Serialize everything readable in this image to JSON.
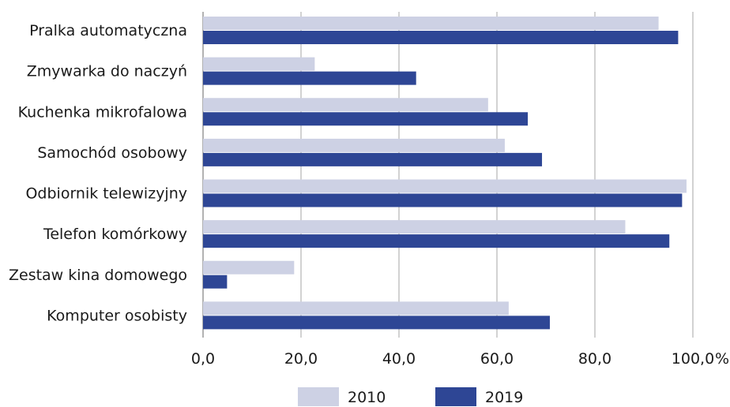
{
  "chart_data": {
    "type": "bar",
    "orientation": "horizontal",
    "categories": [
      "Pralka automatyczna",
      "Zmywarka do naczyń",
      "Kuchenka mikrofalowa",
      "Samochód osobowy",
      "Odbiornik telewizyjny",
      "Telefon komórkowy",
      "Zestaw kina domowego",
      "Komputer osobisty"
    ],
    "series": [
      {
        "name": "2010",
        "color": "#cdd1e4",
        "values": [
          93.0,
          22.8,
          58.2,
          61.6,
          98.7,
          86.2,
          18.6,
          62.4
        ]
      },
      {
        "name": "2019",
        "color": "#2e4695",
        "values": [
          97.0,
          43.5,
          66.3,
          69.2,
          97.8,
          95.2,
          4.9,
          70.8
        ]
      }
    ],
    "xlim": [
      0,
      100
    ],
    "x_ticks": [
      "0,0",
      "20,0",
      "40,0",
      "60,0",
      "80,0",
      "100,0"
    ],
    "x_unit": "%",
    "grid": "vertical",
    "legend_position": "bottom-center"
  }
}
